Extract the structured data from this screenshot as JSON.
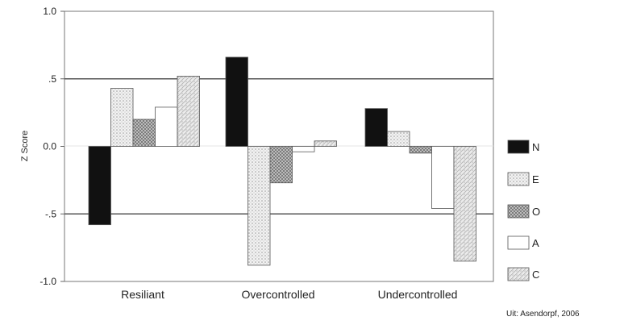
{
  "chart_data": {
    "type": "bar",
    "ylabel": "Z Score",
    "ylim": [
      -1.0,
      1.0
    ],
    "yticks": [
      "1.0",
      ".5",
      "0.0",
      "-.5",
      "-1.0"
    ],
    "reference_lines": [
      0.5,
      -0.5
    ],
    "categories": [
      "Resiliant",
      "Overcontrolled",
      "Undercontrolled"
    ],
    "series": [
      {
        "name": "N",
        "pattern": "solid-black",
        "values": [
          -0.58,
          0.66,
          0.28
        ]
      },
      {
        "name": "E",
        "pattern": "light-dots",
        "values": [
          0.43,
          -0.88,
          0.11
        ]
      },
      {
        "name": "O",
        "pattern": "crosshatch",
        "values": [
          0.2,
          -0.27,
          -0.05
        ]
      },
      {
        "name": "A",
        "pattern": "white",
        "values": [
          0.29,
          -0.04,
          -0.46
        ]
      },
      {
        "name": "C",
        "pattern": "stipple",
        "values": [
          0.52,
          0.04,
          -0.85
        ]
      }
    ],
    "legend_position": "right"
  },
  "source_note": "Uit: Asendorpf, 2006"
}
